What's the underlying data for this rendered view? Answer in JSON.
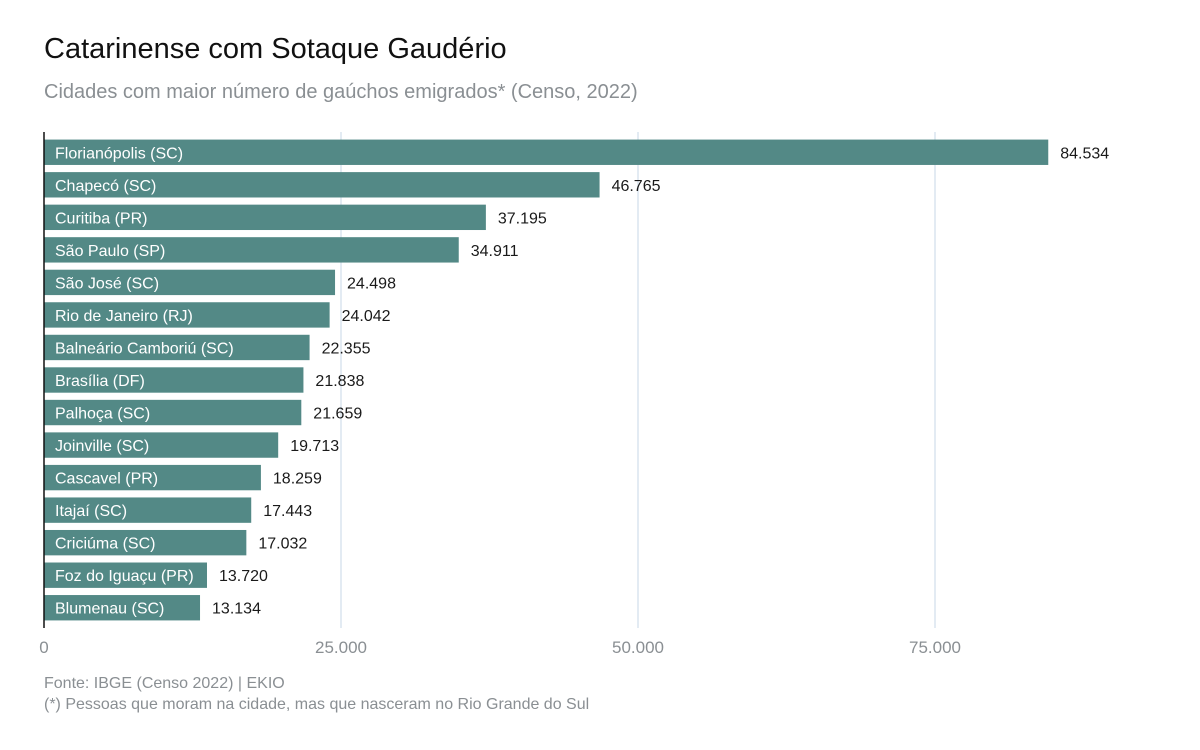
{
  "chart_data": {
    "type": "bar",
    "orientation": "horizontal",
    "title": "Catarinense com Sotaque Gaudério",
    "subtitle": "Cidades com maior número de gaúchos emigrados* (Censo, 2022)",
    "categories": [
      "Florianópolis (SC)",
      "Chapecó (SC)",
      "Curitiba (PR)",
      "São Paulo (SP)",
      "São José (SC)",
      "Rio de Janeiro (RJ)",
      "Balneário Camboriú (SC)",
      "Brasília (DF)",
      "Palhoça (SC)",
      "Joinville (SC)",
      "Cascavel (PR)",
      "Itajaí (SC)",
      "Criciúma (SC)",
      "Foz do Iguaçu (PR)",
      "Blumenau (SC)"
    ],
    "values": [
      84534,
      46765,
      37195,
      34911,
      24498,
      24042,
      22355,
      21838,
      21659,
      19713,
      18259,
      17443,
      17032,
      13720,
      13134
    ],
    "value_labels": [
      "84.534",
      "46.765",
      "37.195",
      "34.911",
      "24.498",
      "24.042",
      "22.355",
      "21.838",
      "21.659",
      "19.713",
      "18.259",
      "17.443",
      "17.032",
      "13.720",
      "13.134"
    ],
    "xlim": [
      0,
      100000
    ],
    "x_ticks": [
      0,
      25000,
      50000,
      75000
    ],
    "x_tick_labels": [
      "0",
      "25.000",
      "50.000",
      "75.000"
    ],
    "xlabel": "",
    "ylabel": "",
    "grid": "vertical",
    "bar_color": "#538986",
    "grid_color": "#e3ebf3",
    "legend": "none"
  },
  "caption": {
    "source": "Fonte: IBGE (Censo 2022) | EKIO",
    "note": "(*) Pessoas que moram na cidade, mas que nasceram no Rio Grande do Sul"
  }
}
